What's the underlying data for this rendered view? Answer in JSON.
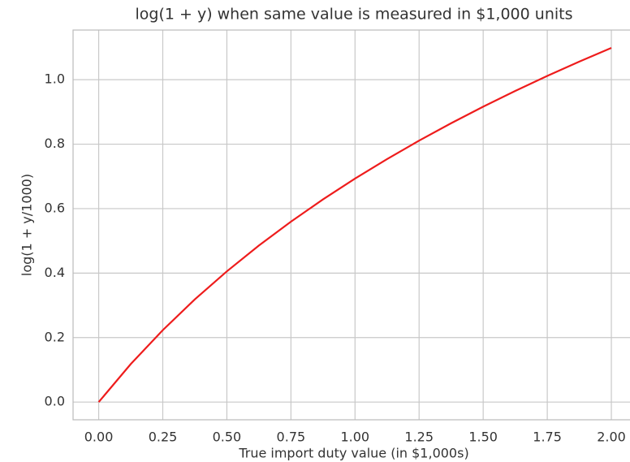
{
  "chart_data": {
    "type": "line",
    "title": "log(1 + y) when same value is measured in $1,000 units",
    "xlabel": "True import duty value (in $1,000s)",
    "ylabel": "log(1 + y/1000)",
    "x": [
      0,
      0.125,
      0.25,
      0.375,
      0.5,
      0.625,
      0.75,
      0.875,
      1,
      1.125,
      1.25,
      1.375,
      1.5,
      1.625,
      1.75,
      1.875,
      2
    ],
    "series": [
      {
        "name": "log(1 + y/1000)",
        "color": "#ee1c1c",
        "values": [
          0,
          0.1178,
          0.2231,
          0.3185,
          0.4055,
          0.4855,
          0.5596,
          0.6286,
          0.6931,
          0.7538,
          0.8109,
          0.865,
          0.9163,
          0.9651,
          1.0116,
          1.0561,
          1.0986
        ]
      }
    ],
    "xlim": [
      -0.1,
      2.1
    ],
    "ylim": [
      -0.055,
      1.154
    ],
    "xticks": [
      {
        "value": 0,
        "label": "0.00"
      },
      {
        "value": 0.25,
        "label": "0.25"
      },
      {
        "value": 0.5,
        "label": "0.50"
      },
      {
        "value": 0.75,
        "label": "0.75"
      },
      {
        "value": 1,
        "label": "1.00"
      },
      {
        "value": 1.25,
        "label": "1.25"
      },
      {
        "value": 1.5,
        "label": "1.50"
      },
      {
        "value": 1.75,
        "label": "1.75"
      },
      {
        "value": 2,
        "label": "2.00"
      }
    ],
    "yticks": [
      {
        "value": 0,
        "label": "0.0"
      },
      0.2,
      0.4,
      0.6,
      0.8,
      {
        "value": 1,
        "label": "1.0"
      }
    ],
    "grid": true
  }
}
